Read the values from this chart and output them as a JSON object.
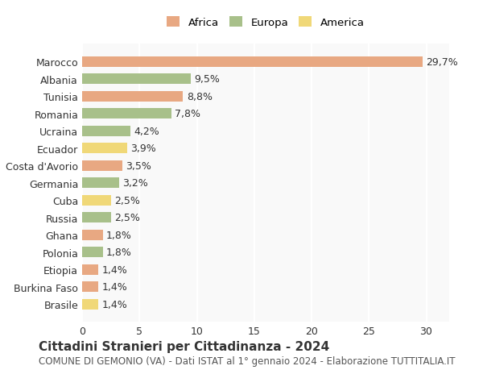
{
  "countries": [
    "Marocco",
    "Albania",
    "Tunisia",
    "Romania",
    "Ucraina",
    "Ecuador",
    "Costa d'Avorio",
    "Germania",
    "Cuba",
    "Russia",
    "Ghana",
    "Polonia",
    "Etiopia",
    "Burkina Faso",
    "Brasile"
  ],
  "values": [
    29.7,
    9.5,
    8.8,
    7.8,
    4.2,
    3.9,
    3.5,
    3.2,
    2.5,
    2.5,
    1.8,
    1.8,
    1.4,
    1.4,
    1.4
  ],
  "labels": [
    "29,7%",
    "9,5%",
    "8,8%",
    "7,8%",
    "4,2%",
    "3,9%",
    "3,5%",
    "3,2%",
    "2,5%",
    "2,5%",
    "1,8%",
    "1,8%",
    "1,4%",
    "1,4%",
    "1,4%"
  ],
  "continents": [
    "Africa",
    "Europa",
    "Africa",
    "Europa",
    "Europa",
    "America",
    "Africa",
    "Europa",
    "America",
    "Europa",
    "Africa",
    "Europa",
    "Africa",
    "Africa",
    "America"
  ],
  "colors": {
    "Africa": "#E8A882",
    "Europa": "#A8C08A",
    "America": "#F0D878"
  },
  "legend_colors": {
    "Africa": "#E8A882",
    "Europa": "#A8C08A",
    "America": "#F0D878"
  },
  "title": "Cittadini Stranieri per Cittadinanza - 2024",
  "subtitle": "COMUNE DI GEMONIO (VA) - Dati ISTAT al 1° gennaio 2024 - Elaborazione TUTTITALIA.IT",
  "xlim": [
    0,
    32
  ],
  "background_color": "#ffffff",
  "plot_background": "#f9f9f9",
  "grid_color": "#ffffff",
  "bar_height": 0.6,
  "label_fontsize": 9,
  "title_fontsize": 11,
  "subtitle_fontsize": 8.5
}
